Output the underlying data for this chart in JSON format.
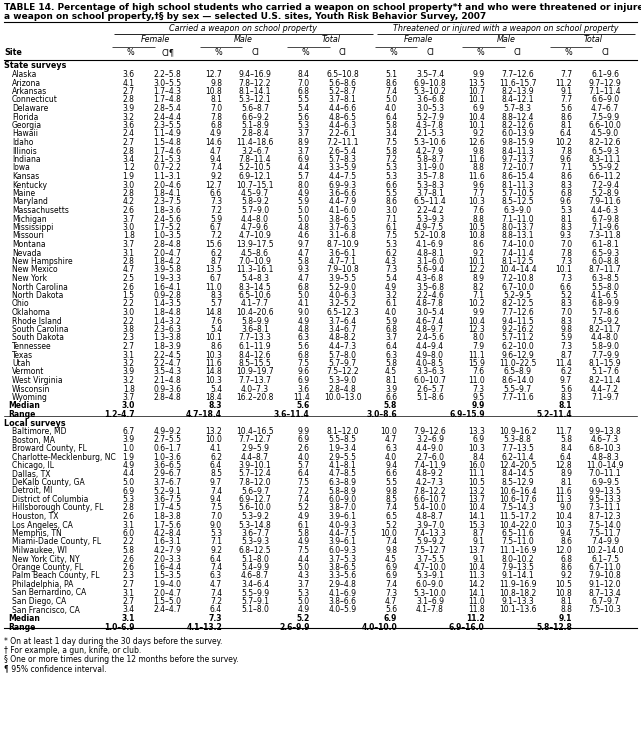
{
  "title_line1": "TABLE 14. Percentage of high school students who carried a weapon on school property*† and who were threatened or injured with",
  "title_line2": "a weapon on school property,†§ by sex — selected U.S. sites, Youth Risk Behavior Survey, 2007",
  "header1": [
    "Carried a weapon on school property",
    "Threatened or injured with a weapon on school property"
  ],
  "header2": [
    "Female",
    "Male",
    "Total",
    "Female",
    "Male",
    "Total"
  ],
  "section1_label": "State surveys",
  "state_rows": [
    [
      "Alaska",
      "3.6",
      "2.2–5.8",
      "12.7",
      "9.4–16.9",
      "8.4",
      "6.5–10.8",
      "5.1",
      "3.5–7.4",
      "9.9",
      "7.7–12.6",
      "7.7",
      "6.1–9.6"
    ],
    [
      "Arizona",
      "4.1",
      "3.0–5.5",
      "9.8",
      "7.8–12.2",
      "7.0",
      "5.6–8.6",
      "8.6",
      "6.9–10.8",
      "13.5",
      "11.6–15.7",
      "11.2",
      "9.7–12.9"
    ],
    [
      "Arkansas",
      "2.7",
      "1.7–4.3",
      "10.8",
      "8.1–14.1",
      "6.8",
      "5.2–8.7",
      "7.4",
      "5.3–10.2",
      "10.7",
      "8.2–13.9",
      "9.1",
      "7.1–11.4"
    ],
    [
      "Connecticut",
      "2.8",
      "1.7–4.8",
      "8.1",
      "5.3–12.1",
      "5.5",
      "3.7–8.1",
      "5.0",
      "3.6–6.8",
      "10.1",
      "8.4–12.1",
      "7.7",
      "6.6–9.0"
    ],
    [
      "Delaware",
      "3.9",
      "2.8–5.4",
      "7.0",
      "5.6–8.7",
      "5.4",
      "4.4–6.6",
      "4.0",
      "3.0–5.3",
      "6.9",
      "5.7–8.3",
      "5.6",
      "4.7–6.7"
    ],
    [
      "Florida",
      "3.2",
      "2.4–4.4",
      "7.8",
      "6.6–9.2",
      "5.6",
      "4.8–6.5",
      "6.4",
      "5.2–7.9",
      "10.4",
      "8.8–12.4",
      "8.6",
      "7.5–9.9"
    ],
    [
      "Georgia",
      "3.6",
      "2.3–5.5",
      "6.8",
      "5.1–8.9",
      "5.3",
      "4.4–6.3",
      "5.8",
      "4.3–7.8",
      "10.1",
      "8.2–12.6",
      "8.1",
      "6.6–10.0"
    ],
    [
      "Hawaii",
      "2.4",
      "1.1–4.9",
      "4.9",
      "2.8–8.4",
      "3.7",
      "2.2–6.1",
      "3.4",
      "2.1–5.3",
      "9.2",
      "6.0–13.9",
      "6.4",
      "4.5–9.0"
    ],
    [
      "Idaho",
      "2.7",
      "1.5–4.8",
      "14.6",
      "11.4–18.6",
      "8.9",
      "7.2–11.1",
      "7.5",
      "5.3–10.6",
      "12.6",
      "9.8–15.9",
      "10.2",
      "8.2–12.6"
    ],
    [
      "Illinois",
      "2.8",
      "1.7–4.6",
      "4.7",
      "3.2–6.7",
      "3.7",
      "2.6–5.4",
      "5.8",
      "4.2–7.9",
      "9.8",
      "8.4–11.3",
      "7.8",
      "6.5–9.3"
    ],
    [
      "Indiana",
      "3.4",
      "2.1–5.3",
      "9.4",
      "7.8–11.4",
      "6.9",
      "5.7–8.3",
      "7.2",
      "5.8–8.7",
      "11.6",
      "9.7–13.7",
      "9.6",
      "8.3–11.1"
    ],
    [
      "Iowa",
      "1.2",
      "0.7–2.2",
      "7.4",
      "5.2–10.5",
      "4.4",
      "3.3–5.9",
      "5.3",
      "3.1–9.0",
      "8.8",
      "7.2–10.7",
      "7.1",
      "5.5–9.2"
    ],
    [
      "Kansas",
      "1.9",
      "1.1–3.1",
      "9.2",
      "6.9–12.1",
      "5.7",
      "4.4–7.5",
      "5.3",
      "3.5–7.8",
      "11.6",
      "8.6–15.4",
      "8.6",
      "6.6–11.2"
    ],
    [
      "Kentucky",
      "3.0",
      "2.0–4.6",
      "12.7",
      "10.7–15.1",
      "8.0",
      "6.9–9.3",
      "6.6",
      "5.3–8.3",
      "9.6",
      "8.1–11.3",
      "8.3",
      "7.2–9.4"
    ],
    [
      "Maine",
      "2.8",
      "1.8–4.1",
      "6.6",
      "4.5–9.7",
      "4.9",
      "3.6–6.6",
      "5.5",
      "3.7–8.1",
      "7.7",
      "5.7–10.5",
      "6.8",
      "5.2–8.9"
    ],
    [
      "Maryland",
      "4.2",
      "2.3–7.5",
      "7.3",
      "5.8–9.2",
      "5.9",
      "4.4–7.9",
      "8.6",
      "6.5–11.4",
      "10.3",
      "8.5–12.5",
      "9.6",
      "7.9–11.6"
    ],
    [
      "Massachusetts",
      "2.6",
      "1.8–3.6",
      "7.2",
      "5.7–9.0",
      "5.0",
      "4.1–6.0",
      "3.0",
      "2.2–4.2",
      "7.6",
      "6.3–9.0",
      "5.3",
      "4.4–6.3"
    ],
    [
      "Michigan",
      "3.7",
      "2.4–5.6",
      "5.9",
      "4.4–8.0",
      "5.0",
      "3.8–6.5",
      "7.1",
      "5.3–9.3",
      "8.8",
      "7.1–11.0",
      "8.1",
      "6.7–9.8"
    ],
    [
      "Mississippi",
      "3.0",
      "1.7–5.2",
      "6.7",
      "4.7–9.6",
      "4.8",
      "3.7–6.3",
      "6.1",
      "4.9–7.5",
      "10.5",
      "8.0–13.7",
      "8.3",
      "7.1–9.6"
    ],
    [
      "Missouri",
      "1.8",
      "1.0–3.5",
      "7.2",
      "4.7–10.9",
      "4.6",
      "3.1–6.8",
      "7.5",
      "5.2–10.8",
      "10.8",
      "8.8–13.1",
      "9.3",
      "7.3–11.8"
    ],
    [
      "Montana",
      "3.7",
      "2.8–4.8",
      "15.6",
      "13.9–17.5",
      "9.7",
      "8.7–10.9",
      "5.3",
      "4.1–6.9",
      "8.6",
      "7.4–10.0",
      "7.0",
      "6.1–8.1"
    ],
    [
      "Nevada",
      "3.1",
      "2.0–4.7",
      "6.2",
      "4.5–8.6",
      "4.7",
      "3.6–6.1",
      "6.2",
      "4.8–8.1",
      "9.2",
      "7.4–11.4",
      "7.8",
      "6.5–9.3"
    ],
    [
      "New Hampshire",
      "2.8",
      "1.8–4.2",
      "8.7",
      "7.0–10.9",
      "5.8",
      "4.7–7.1",
      "4.3",
      "3.1–6.0",
      "10.1",
      "8.1–12.5",
      "7.3",
      "6.0–8.8"
    ],
    [
      "New Mexico",
      "4.7",
      "3.9–5.8",
      "13.5",
      "11.3–16.1",
      "9.3",
      "7.9–10.8",
      "7.3",
      "5.6–9.4",
      "12.2",
      "10.4–14.4",
      "10.1",
      "8.7–11.7"
    ],
    [
      "New York",
      "2.5",
      "1.9–3.3",
      "6.7",
      "5.4–8.3",
      "4.7",
      "3.9–5.5",
      "5.4",
      "4.3–6.8",
      "8.9",
      "7.2–10.8",
      "7.3",
      "6.3–8.5"
    ],
    [
      "North Carolina",
      "2.6",
      "1.6–4.1",
      "11.0",
      "8.3–14.5",
      "6.8",
      "5.2–9.0",
      "4.9",
      "3.5–6.8",
      "8.2",
      "6.7–10.0",
      "6.6",
      "5.5–8.0"
    ],
    [
      "North Dakota",
      "1.5",
      "0.9–2.8",
      "8.3",
      "6.5–10.6",
      "5.0",
      "4.0–6.3",
      "3.2",
      "2.2–4.6",
      "7.1",
      "5.2–9.5",
      "5.2",
      "4.1–6.5"
    ],
    [
      "Ohio",
      "2.2",
      "1.4–3.5",
      "5.7",
      "4.1–7.7",
      "4.1",
      "3.2–5.2",
      "6.1",
      "4.8–7.8",
      "10.2",
      "8.2–12.5",
      "8.3",
      "6.8–9.9"
    ],
    [
      "Oklahoma",
      "3.0",
      "1.8–4.8",
      "14.8",
      "10.4–20.6",
      "9.0",
      "6.5–12.3",
      "4.0",
      "3.0–5.4",
      "9.9",
      "7.7–12.6",
      "7.0",
      "5.7–8.6"
    ],
    [
      "Rhode Island",
      "2.2",
      "1.4–3.2",
      "7.6",
      "5.8–9.9",
      "4.9",
      "3.7–6.4",
      "5.9",
      "4.6–7.4",
      "10.4",
      "9.4–11.5",
      "8.3",
      "7.5–9.2"
    ],
    [
      "South Carolina",
      "3.8",
      "2.3–6.3",
      "5.4",
      "3.6–8.1",
      "4.8",
      "3.4–6.7",
      "6.8",
      "4.8–9.7",
      "12.3",
      "9.2–16.2",
      "9.8",
      "8.2–11.7"
    ],
    [
      "South Dakota",
      "2.3",
      "1.3–3.8",
      "10.1",
      "7.7–13.3",
      "6.3",
      "4.8–8.2",
      "3.7",
      "2.4–5.6",
      "8.0",
      "5.7–11.2",
      "5.9",
      "4.4–8.0"
    ],
    [
      "Tennessee",
      "2.7",
      "1.8–3.9",
      "8.6",
      "6.1–11.9",
      "5.6",
      "4.4–7.3",
      "6.4",
      "4.4–9.4",
      "7.9",
      "6.2–10.0",
      "7.3",
      "5.8–9.0"
    ],
    [
      "Texas",
      "3.1",
      "2.2–4.5",
      "10.3",
      "8.4–12.6",
      "6.8",
      "5.7–8.0",
      "6.3",
      "4.9–8.0",
      "11.1",
      "9.6–12.9",
      "8.7",
      "7.7–9.9"
    ],
    [
      "Utah",
      "3.2",
      "2.2–4.7",
      "11.6",
      "8.5–15.5",
      "7.5",
      "5.7–9.7",
      "5.8",
      "4.0–8.5",
      "15.9",
      "11.0–22.5",
      "11.4",
      "8.1–15.9"
    ],
    [
      "Vermont",
      "3.9",
      "3.5–4.3",
      "14.8",
      "10.9–19.7",
      "9.6",
      "7.5–12.2",
      "4.5",
      "3.3–6.3",
      "7.6",
      "6.5–8.9",
      "6.2",
      "5.1–7.6"
    ],
    [
      "West Virginia",
      "3.2",
      "2.1–4.8",
      "10.3",
      "7.7–13.7",
      "6.9",
      "5.3–9.0",
      "8.1",
      "6.0–10.7",
      "11.0",
      "8.6–14.0",
      "9.7",
      "8.2–11.4"
    ],
    [
      "Wisconsin",
      "1.8",
      "0.9–3.6",
      "5.4",
      "4.0–7.3",
      "3.6",
      "2.8–4.8",
      "3.9",
      "2.6–5.7",
      "7.3",
      "5.5–9.7",
      "5.6",
      "4.4–7.2"
    ],
    [
      "Wyoming",
      "3.7",
      "2.8–4.8",
      "18.4",
      "16.2–20.8",
      "11.4",
      "10.0–13.0",
      "6.6",
      "5.1–8.6",
      "9.5",
      "7.7–11.6",
      "8.3",
      "7.1–9.7"
    ],
    [
      "Median",
      "3.0",
      "",
      "8.3",
      "",
      "5.6",
      "",
      "5.8",
      "",
      "9.9",
      "",
      "8.1",
      ""
    ],
    [
      "Range",
      "1.2–4.7",
      "",
      "4.7–18.4",
      "",
      "3.6–11.4",
      "",
      "3.0–8.6",
      "",
      "6.9–15.9",
      "",
      "5.2–11.4",
      ""
    ]
  ],
  "section2_label": "Local surveys",
  "local_rows": [
    [
      "Baltimore, MD",
      "6.7",
      "4.9–9.2",
      "13.2",
      "10.4–16.5",
      "9.9",
      "8.1–12.0",
      "10.0",
      "7.9–12.6",
      "13.3",
      "10.9–16.2",
      "11.7",
      "9.9–13.8"
    ],
    [
      "Boston, MA",
      "3.9",
      "2.7–5.5",
      "10.0",
      "7.7–12.7",
      "6.9",
      "5.5–8.5",
      "4.7",
      "3.2–6.9",
      "6.9",
      "5.3–8.8",
      "5.8",
      "4.6–7.3"
    ],
    [
      "Broward County, FL",
      "1.0",
      "0.6–1.7",
      "4.1",
      "2.9–5.9",
      "2.6",
      "1.9–3.4",
      "6.3",
      "4.4–9.0",
      "10.3",
      "7.7–13.5",
      "8.4",
      "6.8–10.3"
    ],
    [
      "Charlotte-Mecklenburg, NC",
      "1.9",
      "1.0–3.6",
      "6.2",
      "4.4–8.7",
      "4.0",
      "2.9–5.5",
      "4.0",
      "2.7–6.0",
      "8.4",
      "6.2–11.4",
      "6.4",
      "4.8–8.3"
    ],
    [
      "Chicago, IL",
      "4.9",
      "3.6–6.5",
      "6.4",
      "3.9–10.1",
      "5.7",
      "4.1–8.1",
      "9.4",
      "7.4–11.9",
      "16.0",
      "12.4–20.5",
      "12.8",
      "11.0–14.9"
    ],
    [
      "Dallas, TX",
      "4.4",
      "2.9–6.7",
      "8.5",
      "5.7–12.4",
      "6.4",
      "4.7–8.5",
      "6.6",
      "4.8–9.2",
      "11.1",
      "8.4–14.5",
      "8.9",
      "7.0–11.1"
    ],
    [
      "DeKalb County, GA",
      "5.0",
      "3.7–6.7",
      "9.7",
      "7.8–12.0",
      "7.5",
      "6.3–8.9",
      "5.5",
      "4.2–7.3",
      "10.5",
      "8.5–12.9",
      "8.1",
      "6.9–9.5"
    ],
    [
      "Detroit, MI",
      "6.9",
      "5.2–9.1",
      "7.4",
      "5.6–9.7",
      "7.2",
      "5.8–8.9",
      "9.8",
      "7.8–12.2",
      "13.2",
      "10.6–16.4",
      "11.6",
      "9.9–13.5"
    ],
    [
      "District of Columbia",
      "5.3",
      "3.6–7.5",
      "9.4",
      "6.9–12.7",
      "7.4",
      "6.0–9.0",
      "8.5",
      "6.6–10.7",
      "13.7",
      "10.6–17.6",
      "11.3",
      "9.5–13.3"
    ],
    [
      "Hillsborough County, FL",
      "2.8",
      "1.7–4.5",
      "7.5",
      "5.6–10.0",
      "5.2",
      "3.8–7.0",
      "7.4",
      "5.4–10.0",
      "10.4",
      "7.5–14.3",
      "9.0",
      "7.3–11.1"
    ],
    [
      "Houston, TX",
      "2.6",
      "1.8–3.8",
      "7.0",
      "5.3–9.2",
      "4.9",
      "3.9–6.1",
      "6.5",
      "4.8–8.7",
      "14.1",
      "11.5–17.2",
      "10.4",
      "8.7–12.3"
    ],
    [
      "Los Angeles, CA",
      "3.1",
      "1.7–5.6",
      "9.0",
      "5.3–14.8",
      "6.1",
      "4.0–9.3",
      "5.2",
      "3.9–7.0",
      "15.3",
      "10.4–22.0",
      "10.3",
      "7.5–14.0"
    ],
    [
      "Memphis, TN",
      "6.0",
      "4.2–8.4",
      "5.3",
      "3.6–7.7",
      "5.8",
      "4.4–7.5",
      "10.0",
      "7.4–13.3",
      "8.7",
      "6.5–11.6",
      "9.4",
      "7.5–11.7"
    ],
    [
      "Miami-Dade County, FL",
      "2.2",
      "1.6–3.1",
      "7.1",
      "5.3–9.3",
      "4.9",
      "3.9–6.1",
      "7.4",
      "5.9–9.2",
      "9.1",
      "7.5–11.0",
      "8.6",
      "7.4–9.9"
    ],
    [
      "Milwaukee, WI",
      "5.8",
      "4.2–7.9",
      "9.2",
      "6.8–12.5",
      "7.5",
      "6.0–9.3",
      "9.8",
      "7.5–12.7",
      "13.7",
      "11.1–16.9",
      "12.0",
      "10.2–14.0"
    ],
    [
      "New York City, NY",
      "2.6",
      "2.0–3.3",
      "6.4",
      "5.1–8.0",
      "4.4",
      "3.7–5.3",
      "4.5",
      "3.7–5.5",
      "9.1",
      "8.0–10.2",
      "6.8",
      "6.1–7.5"
    ],
    [
      "Orange County, FL",
      "2.6",
      "1.6–4.4",
      "7.4",
      "5.4–9.9",
      "5.0",
      "3.8–6.5",
      "6.9",
      "4.7–10.0",
      "10.4",
      "7.9–13.5",
      "8.6",
      "6.7–11.0"
    ],
    [
      "Palm Beach County, FL",
      "2.3",
      "1.5–3.5",
      "6.3",
      "4.6–8.7",
      "4.3",
      "3.3–5.6",
      "6.9",
      "5.3–9.1",
      "11.3",
      "9.1–14.1",
      "9.2",
      "7.9–10.8"
    ],
    [
      "Philadelphia, PA",
      "2.7",
      "1.9–4.0",
      "4.7",
      "3.4–6.4",
      "3.7",
      "2.9–4.8",
      "7.4",
      "6.0–9.0",
      "14.2",
      "11.9–16.9",
      "10.5",
      "9.1–12.0"
    ],
    [
      "San Bernardino, CA",
      "3.1",
      "2.0–4.7",
      "7.4",
      "5.5–9.9",
      "5.3",
      "4.1–6.9",
      "7.3",
      "5.3–10.0",
      "14.1",
      "10.8–18.2",
      "10.8",
      "8.7–13.4"
    ],
    [
      "San Diego, CA",
      "2.7",
      "1.5–5.0",
      "7.2",
      "5.7–9.1",
      "5.0",
      "3.8–6.6",
      "4.7",
      "3.1–6.9",
      "11.0",
      "9.1–13.3",
      "8.1",
      "6.7–9.7"
    ],
    [
      "San Francisco, CA",
      "3.4",
      "2.4–4.7",
      "6.4",
      "5.1–8.0",
      "4.9",
      "4.0–5.9",
      "5.6",
      "4.1–7.8",
      "11.8",
      "10.1–13.6",
      "8.8",
      "7.5–10.3"
    ],
    [
      "Median",
      "3.1",
      "",
      "7.3",
      "",
      "5.2",
      "",
      "6.9",
      "",
      "11.2",
      "",
      "9.1",
      ""
    ],
    [
      "Range",
      "1.0–6.9",
      "",
      "4.1–13.2",
      "",
      "2.6–9.9",
      "",
      "4.0–10.0",
      "",
      "6.9–16.0",
      "",
      "5.8–12.8",
      ""
    ]
  ],
  "footnotes": [
    "* On at least 1 day during the 30 days before the survey.",
    "† For example, a gun, knife, or club.",
    "§ One or more times during the 12 months before the survey.",
    "¶ 95% confidence interval."
  ]
}
